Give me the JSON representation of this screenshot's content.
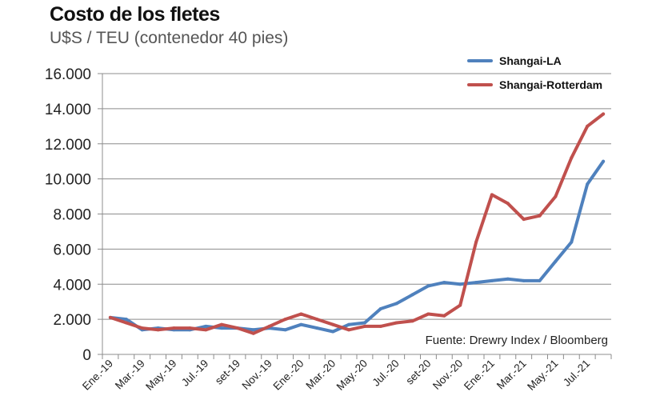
{
  "chart_data": {
    "type": "line",
    "title": "Costo de los fletes",
    "subtitle": "U$S / TEU (contenedor 40 pies)",
    "xlabel": "",
    "ylabel": "",
    "ylim": [
      0,
      16000
    ],
    "y_ticks": [
      0,
      2000,
      4000,
      6000,
      8000,
      10000,
      12000,
      14000,
      16000
    ],
    "y_tick_labels": [
      "0",
      "2.000",
      "4.000",
      "6.000",
      "8.000",
      "10.000",
      "12.000",
      "14.000",
      "16.000"
    ],
    "x_tick_labels": [
      "Ene.-19",
      "Mar.-19",
      "May.-19",
      "Jul.-19",
      "set-19",
      "Nov.-19",
      "Ene.-20",
      "Mar.-20",
      "May.-20",
      "Jul.-20",
      "set-20",
      "Nov.-20",
      "Ene.-21",
      "Mar.-21",
      "May.-21",
      "Jul.-21"
    ],
    "categories": [
      "Ene.-19",
      "Feb.-19",
      "Mar.-19",
      "Abr.-19",
      "May.-19",
      "Jun.-19",
      "Jul.-19",
      "Ago.-19",
      "set-19",
      "Oct.-19",
      "Nov.-19",
      "Dic.-19",
      "Ene.-20",
      "Feb.-20",
      "Mar.-20",
      "Abr.-20",
      "May.-20",
      "Jun.-20",
      "Jul.-20",
      "Ago.-20",
      "set-20",
      "Oct.-20",
      "Nov.-20",
      "Dic.-20",
      "Ene.-21",
      "Feb.-21",
      "Mar.-21",
      "Abr.-21",
      "May.-21",
      "Jun.-21",
      "Jul.-21",
      "Ago.-21"
    ],
    "grid": true,
    "legend_position": "top-right",
    "series": [
      {
        "name": "Shangai-LA",
        "color": "#4F81BD",
        "values": [
          2100,
          2000,
          1400,
          1500,
          1400,
          1400,
          1600,
          1500,
          1500,
          1400,
          1500,
          1400,
          1700,
          1500,
          1300,
          1700,
          1800,
          2600,
          2900,
          3400,
          3900,
          4100,
          4000,
          4100,
          4200,
          4300,
          4200,
          4200,
          5300,
          6400,
          9700,
          11000
        ]
      },
      {
        "name": "Shangai-Rotterdam",
        "color": "#C0504D",
        "values": [
          2100,
          1800,
          1500,
          1400,
          1500,
          1500,
          1400,
          1700,
          1500,
          1200,
          1600,
          2000,
          2300,
          2000,
          1700,
          1400,
          1600,
          1600,
          1800,
          1900,
          2300,
          2200,
          2800,
          6400,
          9100,
          8600,
          7700,
          7900,
          9000,
          11200,
          13000,
          13700
        ]
      }
    ],
    "annotation": "Fuente: Drewry Index / Bloomberg"
  }
}
